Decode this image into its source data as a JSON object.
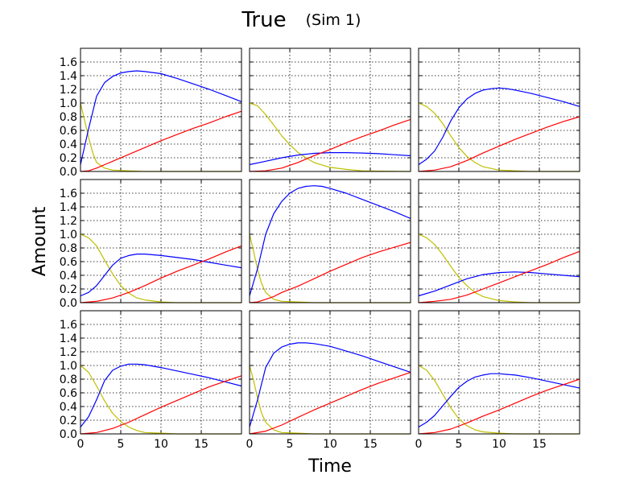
{
  "figure": {
    "title": "True",
    "subtitle": "(Sim 1)",
    "xlabel": "Time",
    "ylabel": "Amount"
  },
  "chart_data": {
    "type": "line",
    "layout": "3x3 grid",
    "xlim": [
      0,
      20
    ],
    "ylim": [
      0,
      1.8
    ],
    "x_ticks": [
      0,
      5,
      10,
      15
    ],
    "y_ticks": [
      0.0,
      0.2,
      0.4,
      0.6,
      0.8,
      1.0,
      1.2,
      1.4,
      1.6
    ],
    "x_tick_labels": [
      "0",
      "5",
      "10",
      "15"
    ],
    "y_tick_labels": [
      "0.0",
      "0.2",
      "0.4",
      "0.6",
      "0.8",
      "1.0",
      "1.2",
      "1.4",
      "1.6"
    ],
    "grid": true,
    "series_colors": {
      "yellow": "#bfbf00",
      "blue": "#0000ff",
      "red": "#ff0000"
    },
    "panels": [
      {
        "yellow": {
          "x": [
            0,
            0.5,
            1,
            1.5,
            2,
            3,
            4,
            6,
            8,
            12,
            20
          ],
          "y": [
            1.0,
            0.75,
            0.5,
            0.28,
            0.13,
            0.05,
            0.02,
            0.01,
            0,
            0,
            0
          ]
        },
        "blue": {
          "x": [
            0,
            1,
            2,
            3,
            4,
            5,
            6,
            7,
            8,
            10,
            12,
            14,
            16,
            18,
            20
          ],
          "y": [
            0.1,
            0.62,
            1.1,
            1.3,
            1.39,
            1.44,
            1.46,
            1.47,
            1.46,
            1.43,
            1.36,
            1.28,
            1.2,
            1.11,
            1.02
          ]
        },
        "red": {
          "x": [
            0,
            1,
            2,
            3,
            4,
            6,
            8,
            10,
            12,
            14,
            16,
            18,
            20
          ],
          "y": [
            0,
            0.01,
            0.05,
            0.1,
            0.15,
            0.25,
            0.35,
            0.45,
            0.54,
            0.63,
            0.71,
            0.8,
            0.88
          ]
        }
      },
      {
        "yellow": {
          "x": [
            0,
            1,
            2,
            3,
            4,
            5,
            6,
            7,
            8,
            10,
            12,
            14,
            16,
            20
          ],
          "y": [
            1.0,
            0.96,
            0.83,
            0.68,
            0.52,
            0.39,
            0.28,
            0.2,
            0.13,
            0.06,
            0.03,
            0.01,
            0.005,
            0
          ]
        },
        "blue": {
          "x": [
            0,
            2,
            4,
            6,
            8,
            10,
            12,
            14,
            16,
            18,
            20
          ],
          "y": [
            0.1,
            0.15,
            0.2,
            0.24,
            0.265,
            0.275,
            0.275,
            0.27,
            0.26,
            0.245,
            0.23
          ]
        },
        "red": {
          "x": [
            0,
            2,
            4,
            6,
            8,
            10,
            12,
            14,
            16,
            18,
            20
          ],
          "y": [
            0,
            0.01,
            0.05,
            0.13,
            0.23,
            0.32,
            0.42,
            0.51,
            0.59,
            0.68,
            0.76
          ]
        }
      },
      {
        "yellow": {
          "x": [
            0,
            1,
            2,
            3,
            4,
            5,
            6,
            7,
            8,
            10,
            12,
            14,
            20
          ],
          "y": [
            1.0,
            0.95,
            0.85,
            0.7,
            0.52,
            0.35,
            0.22,
            0.13,
            0.07,
            0.02,
            0.01,
            0,
            0
          ]
        },
        "blue": {
          "x": [
            0,
            1,
            2,
            3,
            4,
            5,
            6,
            7,
            8,
            9,
            10,
            11,
            12,
            14,
            16,
            18,
            20
          ],
          "y": [
            0.1,
            0.18,
            0.3,
            0.5,
            0.74,
            0.93,
            1.06,
            1.14,
            1.19,
            1.21,
            1.22,
            1.21,
            1.19,
            1.14,
            1.08,
            1.02,
            0.95
          ]
        },
        "red": {
          "x": [
            0,
            2,
            4,
            6,
            8,
            10,
            12,
            14,
            16,
            18,
            20
          ],
          "y": [
            0,
            0.02,
            0.07,
            0.16,
            0.27,
            0.37,
            0.47,
            0.56,
            0.65,
            0.73,
            0.8
          ]
        }
      },
      {
        "yellow": {
          "x": [
            0,
            1,
            2,
            3,
            4,
            5,
            6,
            7,
            8,
            10,
            12,
            14,
            20
          ],
          "y": [
            1.0,
            0.95,
            0.83,
            0.62,
            0.42,
            0.25,
            0.14,
            0.07,
            0.04,
            0.01,
            0,
            0,
            0
          ]
        },
        "blue": {
          "x": [
            0,
            1,
            2,
            3,
            4,
            5,
            6,
            7,
            8,
            10,
            12,
            14,
            16,
            18,
            20
          ],
          "y": [
            0.1,
            0.15,
            0.25,
            0.4,
            0.55,
            0.65,
            0.69,
            0.71,
            0.71,
            0.69,
            0.66,
            0.63,
            0.59,
            0.55,
            0.51
          ]
        },
        "red": {
          "x": [
            0,
            2,
            4,
            6,
            8,
            10,
            12,
            14,
            16,
            18,
            20
          ],
          "y": [
            0,
            0.02,
            0.07,
            0.15,
            0.25,
            0.36,
            0.46,
            0.55,
            0.64,
            0.74,
            0.83
          ]
        }
      },
      {
        "yellow": {
          "x": [
            0,
            0.5,
            1,
            1.5,
            2,
            3,
            4,
            6,
            8,
            12,
            20
          ],
          "y": [
            1.0,
            0.75,
            0.48,
            0.28,
            0.15,
            0.05,
            0.02,
            0.01,
            0,
            0,
            0
          ]
        },
        "blue": {
          "x": [
            0,
            1,
            2,
            3,
            4,
            5,
            6,
            7,
            8,
            9,
            10,
            12,
            14,
            16,
            18,
            20
          ],
          "y": [
            0.1,
            0.5,
            1.0,
            1.3,
            1.48,
            1.6,
            1.67,
            1.7,
            1.71,
            1.7,
            1.67,
            1.6,
            1.51,
            1.42,
            1.33,
            1.23
          ]
        },
        "red": {
          "x": [
            0,
            1,
            2,
            3,
            4,
            6,
            8,
            10,
            12,
            14,
            16,
            18,
            20
          ],
          "y": [
            0,
            0.01,
            0.05,
            0.09,
            0.15,
            0.24,
            0.35,
            0.46,
            0.56,
            0.66,
            0.74,
            0.81,
            0.88
          ]
        }
      },
      {
        "yellow": {
          "x": [
            0,
            1,
            2,
            3,
            4,
            5,
            6,
            7,
            8,
            10,
            12,
            14,
            16,
            20
          ],
          "y": [
            1.0,
            0.95,
            0.85,
            0.7,
            0.53,
            0.37,
            0.25,
            0.15,
            0.09,
            0.03,
            0.01,
            0,
            0,
            0
          ]
        },
        "blue": {
          "x": [
            0,
            2,
            4,
            6,
            8,
            10,
            12,
            14,
            16,
            18,
            20
          ],
          "y": [
            0.1,
            0.17,
            0.26,
            0.35,
            0.41,
            0.44,
            0.45,
            0.44,
            0.42,
            0.4,
            0.38
          ]
        },
        "red": {
          "x": [
            0,
            2,
            4,
            6,
            8,
            10,
            12,
            14,
            16,
            18,
            20
          ],
          "y": [
            0,
            0.02,
            0.05,
            0.11,
            0.2,
            0.29,
            0.38,
            0.47,
            0.56,
            0.66,
            0.75
          ]
        }
      },
      {
        "yellow": {
          "x": [
            0,
            1,
            2,
            3,
            4,
            5,
            6,
            7,
            8,
            10,
            12,
            14,
            20
          ],
          "y": [
            1.0,
            0.9,
            0.7,
            0.48,
            0.3,
            0.18,
            0.1,
            0.05,
            0.02,
            0.01,
            0,
            0,
            0
          ]
        },
        "blue": {
          "x": [
            0,
            1,
            2,
            3,
            4,
            5,
            6,
            7,
            8,
            10,
            12,
            14,
            16,
            18,
            20
          ],
          "y": [
            0.1,
            0.25,
            0.5,
            0.78,
            0.93,
            0.99,
            1.02,
            1.02,
            1.01,
            0.97,
            0.92,
            0.87,
            0.82,
            0.76,
            0.7
          ]
        },
        "red": {
          "x": [
            0,
            2,
            4,
            6,
            8,
            10,
            12,
            14,
            16,
            18,
            20
          ],
          "y": [
            0,
            0.02,
            0.08,
            0.17,
            0.28,
            0.39,
            0.49,
            0.59,
            0.69,
            0.77,
            0.85
          ]
        }
      },
      {
        "yellow": {
          "x": [
            0,
            0.5,
            1,
            1.5,
            2,
            3,
            4,
            6,
            8,
            12,
            20
          ],
          "y": [
            1.0,
            0.78,
            0.52,
            0.3,
            0.17,
            0.06,
            0.02,
            0.01,
            0,
            0,
            0
          ]
        },
        "blue": {
          "x": [
            0,
            1,
            2,
            3,
            4,
            5,
            6,
            7,
            8,
            10,
            12,
            14,
            16,
            18,
            20
          ],
          "y": [
            0.1,
            0.5,
            0.97,
            1.18,
            1.27,
            1.31,
            1.33,
            1.33,
            1.32,
            1.28,
            1.21,
            1.14,
            1.06,
            0.98,
            0.9
          ]
        },
        "red": {
          "x": [
            0,
            2,
            4,
            6,
            8,
            10,
            12,
            14,
            16,
            18,
            20
          ],
          "y": [
            0,
            0.04,
            0.13,
            0.24,
            0.35,
            0.45,
            0.55,
            0.65,
            0.74,
            0.82,
            0.9
          ]
        }
      },
      {
        "yellow": {
          "x": [
            0,
            1,
            2,
            3,
            4,
            5,
            6,
            7,
            8,
            10,
            12,
            14,
            20
          ],
          "y": [
            1.0,
            0.93,
            0.78,
            0.58,
            0.38,
            0.22,
            0.12,
            0.06,
            0.03,
            0.01,
            0,
            0,
            0
          ]
        },
        "blue": {
          "x": [
            0,
            1,
            2,
            3,
            4,
            5,
            6,
            7,
            8,
            9,
            10,
            11,
            12,
            14,
            16,
            18,
            20
          ],
          "y": [
            0.1,
            0.17,
            0.27,
            0.41,
            0.55,
            0.68,
            0.77,
            0.83,
            0.86,
            0.88,
            0.88,
            0.87,
            0.86,
            0.82,
            0.77,
            0.72,
            0.67
          ]
        },
        "red": {
          "x": [
            0,
            2,
            4,
            6,
            8,
            10,
            12,
            14,
            16,
            18,
            20
          ],
          "y": [
            0,
            0.02,
            0.07,
            0.16,
            0.26,
            0.35,
            0.45,
            0.55,
            0.64,
            0.72,
            0.8
          ]
        }
      }
    ]
  }
}
